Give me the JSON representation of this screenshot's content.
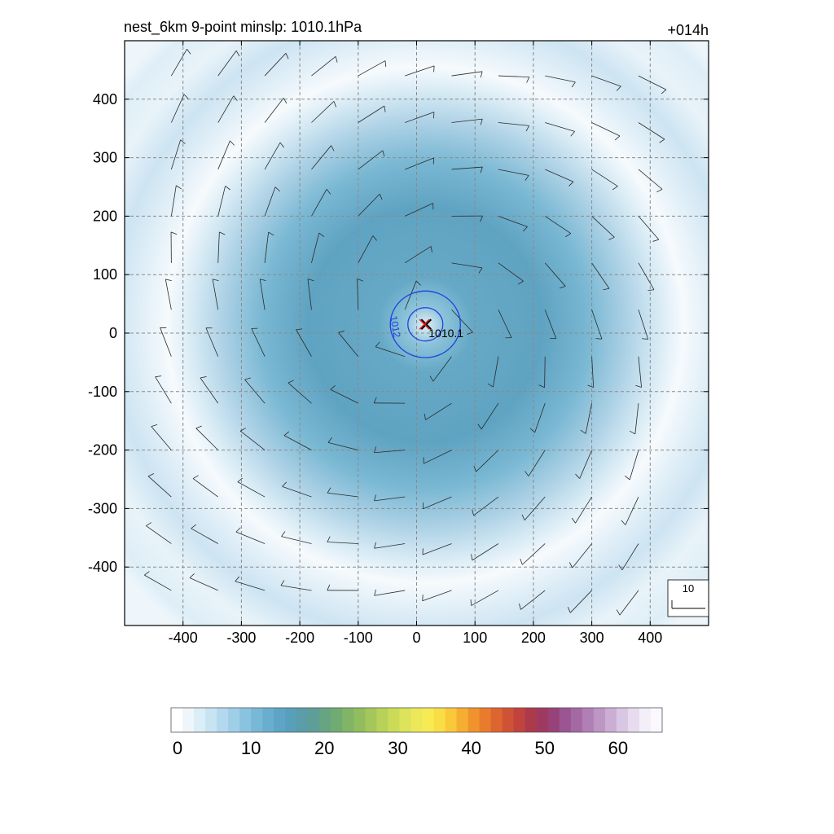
{
  "chart_data": {
    "type": "heatmap",
    "title": "nest_6km  9-point minslp: 1010.1hPa",
    "time_label": "+014h",
    "x_ticks": [
      -400,
      -300,
      -200,
      -100,
      0,
      100,
      200,
      300,
      400
    ],
    "y_ticks": [
      400,
      300,
      200,
      100,
      0,
      -100,
      -200,
      -300,
      -400
    ],
    "x_tick_labels": [
      "-400",
      "-300",
      "-200",
      "-100",
      "0",
      "100",
      "200",
      "300",
      "400"
    ],
    "y_tick_labels": [
      "400",
      "300",
      "200",
      "100",
      "0",
      "-100",
      "-200",
      "-300",
      "-400"
    ],
    "xlim": [
      -500,
      500
    ],
    "ylim": [
      -500,
      500
    ],
    "grid": true,
    "field_max_approx": 13,
    "center": {
      "x": 15,
      "y": 15,
      "min_slp_label": "1010.1"
    },
    "contours": [
      {
        "level": "1012",
        "radius_approx": 60
      },
      {
        "level": "",
        "radius_approx": 30
      }
    ],
    "wind_barb_spacing": 80,
    "reference_vector": {
      "label": "10"
    },
    "colorbar": {
      "min": 0,
      "max": 66,
      "tick_values": [
        0,
        10,
        20,
        30,
        40,
        50,
        60
      ],
      "tick_labels": [
        "0",
        "10",
        "20",
        "30",
        "40",
        "50",
        "60"
      ],
      "colors": [
        "#ffffff",
        "#eef6fb",
        "#dbedf7",
        "#c8e4f3",
        "#b3d9ee",
        "#9fcfe8",
        "#8ac3e0",
        "#78b8d7",
        "#6aaecf",
        "#5ea4c6",
        "#589fbb",
        "#5a9ca8",
        "#5f9e96",
        "#67a482",
        "#71ab72",
        "#80b466",
        "#91bd5e",
        "#a4c75a",
        "#b8d158",
        "#cbdb58",
        "#dde35a",
        "#ede85a",
        "#f7ea52",
        "#f9dd45",
        "#f9c83a",
        "#f6ae31",
        "#f0932c",
        "#e87b2c",
        "#dd652f",
        "#d05235",
        "#c0433d",
        "#ad3a4c",
        "#9e3a60",
        "#974279",
        "#9b5590",
        "#a469a2",
        "#b07fb3",
        "#bd96c4",
        "#cbaed4",
        "#d9c6e2",
        "#e7dcee",
        "#f3eef7",
        "#fbf9fd"
      ]
    }
  }
}
